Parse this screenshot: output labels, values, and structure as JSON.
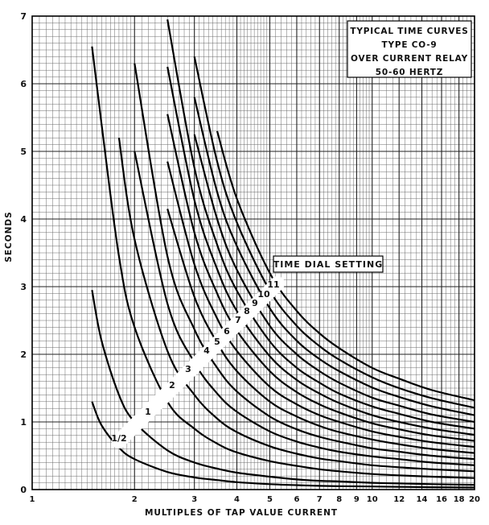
{
  "chart_data": {
    "type": "line",
    "title": [
      "TYPICAL TIME CURVES",
      "TYPE CO-9",
      "OVER CURRENT RELAY",
      "50-60 HERTZ"
    ],
    "xlabel": "MULTIPLES OF TAP VALUE CURRENT",
    "ylabel": "SECONDS",
    "xscale": "log",
    "xlim": [
      1,
      20
    ],
    "ylim": [
      0,
      7
    ],
    "grid": true,
    "x_ticks": [
      {
        "value": 1,
        "label": "1"
      },
      {
        "value": 2,
        "label": "2"
      },
      {
        "value": 3,
        "label": "3"
      },
      {
        "value": 4,
        "label": "4"
      },
      {
        "value": 5,
        "label": "5"
      },
      {
        "value": 6,
        "label": "6"
      },
      {
        "value": 7,
        "label": "7"
      },
      {
        "value": 8,
        "label": "8"
      },
      {
        "value": 9,
        "label": "9"
      },
      {
        "value": 10,
        "label": "10"
      },
      {
        "value": 12,
        "label": "12"
      },
      {
        "value": 14,
        "label": "14"
      },
      {
        "value": 16,
        "label": "16"
      },
      {
        "value": 18,
        "label": "18"
      },
      {
        "value": 20,
        "label": "20"
      }
    ],
    "y_ticks": [
      0,
      1,
      2,
      3,
      4,
      5,
      6,
      7
    ],
    "annotation": "TIME DIAL SETTING",
    "curve_x": [
      1.5,
      1.6,
      1.8,
      2,
      2.5,
      3,
      3.5,
      4,
      5,
      6,
      7,
      8,
      10,
      12,
      15,
      20
    ],
    "series": [
      {
        "name": "1/2",
        "values": [
          1.3,
          0.95,
          0.62,
          0.45,
          0.26,
          0.18,
          0.14,
          0.11,
          0.08,
          0.065,
          0.055,
          0.05,
          0.045,
          0.04,
          0.035,
          0.03
        ]
      },
      {
        "name": "1",
        "values": [
          2.95,
          2.2,
          1.4,
          1.0,
          0.58,
          0.4,
          0.31,
          0.25,
          0.19,
          0.15,
          0.13,
          0.12,
          0.1,
          0.09,
          0.08,
          0.07
        ]
      },
      {
        "name": "2",
        "values": [
          6.55,
          5.4,
          3.45,
          2.4,
          1.3,
          0.9,
          0.68,
          0.55,
          0.42,
          0.35,
          0.3,
          0.27,
          0.23,
          0.21,
          0.19,
          0.17
        ]
      },
      {
        "name": "3",
        "values": [
          null,
          null,
          5.2,
          3.7,
          2.05,
          1.4,
          1.05,
          0.85,
          0.64,
          0.53,
          0.46,
          0.42,
          0.36,
          0.33,
          0.3,
          0.27
        ]
      },
      {
        "name": "4",
        "values": [
          null,
          null,
          null,
          5.0,
          2.75,
          1.88,
          1.42,
          1.15,
          0.86,
          0.71,
          0.62,
          0.56,
          0.49,
          0.45,
          0.4,
          0.36
        ]
      },
      {
        "name": "5",
        "values": [
          null,
          null,
          null,
          6.3,
          3.45,
          2.37,
          1.8,
          1.45,
          1.08,
          0.89,
          0.78,
          0.71,
          0.61,
          0.56,
          0.5,
          0.45
        ]
      },
      {
        "name": "6",
        "values": [
          null,
          null,
          null,
          null,
          4.15,
          2.85,
          2.17,
          1.75,
          1.3,
          1.08,
          0.94,
          0.85,
          0.74,
          0.67,
          0.6,
          0.54
        ]
      },
      {
        "name": "7",
        "values": [
          null,
          null,
          null,
          null,
          4.85,
          3.33,
          2.53,
          2.05,
          1.52,
          1.26,
          1.1,
          1.0,
          0.86,
          0.78,
          0.7,
          0.63
        ]
      },
      {
        "name": "8",
        "values": [
          null,
          null,
          null,
          null,
          5.55,
          3.8,
          2.9,
          2.35,
          1.75,
          1.44,
          1.26,
          1.14,
          0.98,
          0.89,
          0.8,
          0.72
        ]
      },
      {
        "name": "9",
        "values": [
          null,
          null,
          null,
          null,
          6.25,
          4.28,
          3.26,
          2.64,
          1.97,
          1.62,
          1.42,
          1.28,
          1.1,
          1.0,
          0.9,
          0.81
        ]
      },
      {
        "name": "10",
        "values": [
          null,
          null,
          null,
          null,
          6.95,
          4.76,
          3.62,
          2.94,
          2.19,
          1.8,
          1.58,
          1.42,
          1.23,
          1.12,
          1.0,
          0.9
        ]
      },
      {
        "name": "11",
        "values": [
          null,
          null,
          null,
          null,
          null,
          5.25,
          4.0,
          3.25,
          2.42,
          2.0,
          1.75,
          1.58,
          1.36,
          1.24,
          1.11,
          1.0
        ]
      }
    ],
    "extra_curves": [
      {
        "values": [
          null,
          null,
          null,
          null,
          null,
          5.8,
          4.4,
          3.6,
          2.68,
          2.2,
          1.93,
          1.75,
          1.51,
          1.37,
          1.23,
          1.1
        ]
      },
      {
        "values": [
          null,
          null,
          null,
          null,
          null,
          6.4,
          4.85,
          3.95,
          2.94,
          2.42,
          2.12,
          1.92,
          1.66,
          1.5,
          1.35,
          1.21
        ]
      },
      {
        "values": [
          null,
          null,
          null,
          null,
          null,
          null,
          5.3,
          4.3,
          3.2,
          2.64,
          2.31,
          2.09,
          1.8,
          1.64,
          1.47,
          1.32
        ]
      }
    ]
  }
}
